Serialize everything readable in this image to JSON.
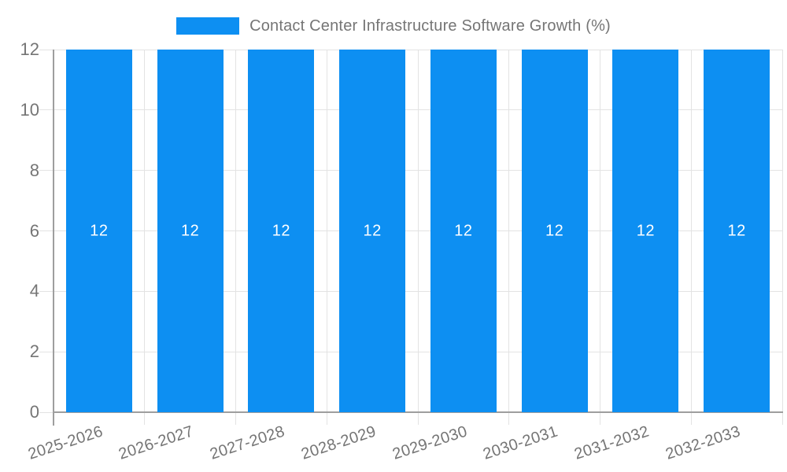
{
  "legend": {
    "label": "Contact Center Infrastructure Software Growth (%)",
    "swatch_color": "#0D8FF2"
  },
  "chart_data": {
    "type": "bar",
    "title": "Contact Center Infrastructure Software Growth (%)",
    "categories": [
      "2025-2026",
      "2026-2027",
      "2027-2028",
      "2028-2029",
      "2029-2030",
      "2030-2031",
      "2031-2032",
      "2032-2033"
    ],
    "series": [
      {
        "name": "Contact Center Infrastructure Software Growth (%)",
        "color": "#0D8FF2",
        "values": [
          12,
          12,
          12,
          12,
          12,
          12,
          12,
          12
        ]
      }
    ],
    "bar_value_labels": [
      "12",
      "12",
      "12",
      "12",
      "12",
      "12",
      "12",
      "12"
    ],
    "xlabel": "",
    "ylabel": "",
    "ylim": [
      0,
      12
    ],
    "yticks": [
      0,
      2,
      4,
      6,
      8,
      10,
      12
    ],
    "grid": true,
    "legend_position": "top",
    "value_label_color": "#ffffff"
  },
  "style_colors": {
    "bar": "#0D8FF2",
    "axis_line": "#9e9e9e",
    "gridline": "#e3e3e3",
    "tick_label": "#757575",
    "legend_text": "#757575",
    "background": "#ffffff"
  }
}
